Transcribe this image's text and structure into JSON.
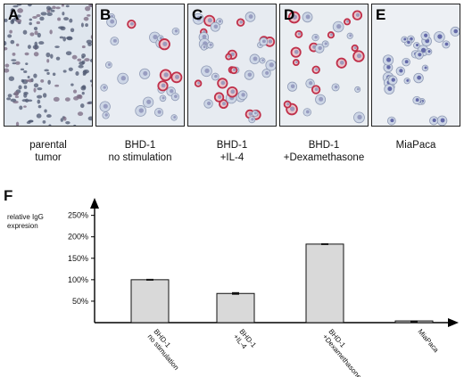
{
  "panels": [
    {
      "letter": "A",
      "caption": [
        "parental",
        "tumor"
      ]
    },
    {
      "letter": "B",
      "caption": [
        "BHD-1",
        "no stimulation"
      ]
    },
    {
      "letter": "C",
      "caption": [
        "BHD-1",
        "+IL-4"
      ]
    },
    {
      "letter": "D",
      "caption": [
        "BHD-1",
        "+Dexamethasone"
      ]
    },
    {
      "letter": "E",
      "caption": [
        "MiaPaca"
      ]
    }
  ],
  "colors": {
    "bar_fill": "#d9d9d9",
    "stain_red": "#c0304a",
    "stain_blue": "#4a4f9a",
    "tissue_bg": "#dfe6ee"
  },
  "chart_data": {
    "type": "bar",
    "panel_letter": "F",
    "ylabel": [
      "relative IgG",
      "expresion"
    ],
    "categories": [
      [
        "BHD-1",
        "no stimulation"
      ],
      [
        "BHD-1",
        "+IL-4"
      ],
      [
        "BHD-1",
        "+Dexamethasone"
      ],
      [
        "MiaPaca"
      ]
    ],
    "values": [
      100,
      68,
      183,
      4
    ],
    "errors": [
      2,
      3,
      2,
      1
    ],
    "yticks": [
      "50%",
      "100%",
      "150%",
      "200%",
      "250%"
    ],
    "ytick_values": [
      50,
      100,
      150,
      200,
      250
    ],
    "ylim": [
      0,
      270
    ],
    "grid": false
  }
}
